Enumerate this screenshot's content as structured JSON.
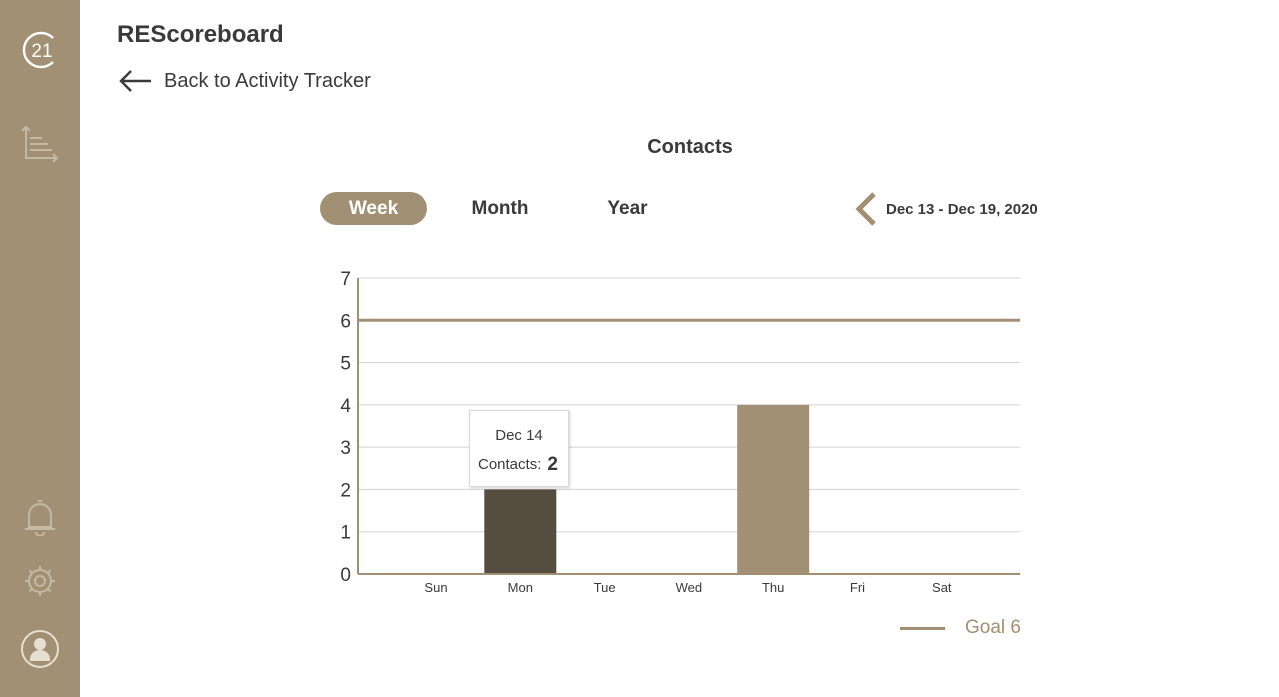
{
  "app": {
    "title": "REScoreboard"
  },
  "nav": {
    "back_label": "Back to Activity Tracker"
  },
  "sidebar": {
    "logo_text": "21",
    "items": [
      {
        "name": "chart-icon"
      },
      {
        "name": "bell-icon"
      },
      {
        "name": "gear-icon"
      },
      {
        "name": "user-icon"
      }
    ]
  },
  "tabs": [
    {
      "label": "Week",
      "active": true
    },
    {
      "label": "Month",
      "active": false
    },
    {
      "label": "Year",
      "active": false
    }
  ],
  "date_range": "Dec 13 - Dec 19, 2020",
  "tooltip": {
    "date": "Dec 14",
    "label": "Contacts:",
    "value": "2"
  },
  "legend": {
    "label": "Goal 6"
  },
  "colors": {
    "accent": "#a19074",
    "selected_bar": "#554d40",
    "text": "#3a3a3a"
  },
  "chart_data": {
    "type": "bar",
    "title": "Contacts",
    "categories": [
      "Sun",
      "Mon",
      "Tue",
      "Wed",
      "Thu",
      "Fri",
      "Sat"
    ],
    "values": [
      0,
      2,
      0,
      0,
      4,
      0,
      0
    ],
    "selected_index": 1,
    "goal": 6,
    "ylim": [
      0,
      7
    ],
    "yticks": [
      0,
      1,
      2,
      3,
      4,
      5,
      6,
      7
    ],
    "grid": true,
    "legend_position": "bottom-right"
  }
}
